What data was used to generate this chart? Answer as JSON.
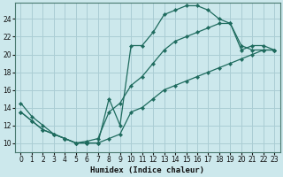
{
  "xlabel": "Humidex (Indice chaleur)",
  "background_color": "#cce8ec",
  "line_color": "#1e6b5e",
  "grid_color": "#aacdd4",
  "xlim": [
    -0.5,
    23.5
  ],
  "ylim": [
    9.0,
    25.8
  ],
  "xticks": [
    0,
    1,
    2,
    3,
    4,
    5,
    6,
    7,
    8,
    9,
    10,
    11,
    12,
    13,
    14,
    15,
    16,
    17,
    18,
    19,
    20,
    21,
    22,
    23
  ],
  "yticks": [
    10,
    12,
    14,
    16,
    18,
    20,
    22,
    24
  ],
  "curve1_x": [
    0,
    1,
    2,
    3,
    4,
    5,
    6,
    7,
    8,
    9,
    10,
    11,
    12,
    13,
    14,
    15,
    16,
    17,
    18,
    19,
    20,
    21,
    22,
    23
  ],
  "curve1_y": [
    14.5,
    13.0,
    12.0,
    11.0,
    10.5,
    10.0,
    10.0,
    10.0,
    15.0,
    12.0,
    21.0,
    21.0,
    22.5,
    24.5,
    25.0,
    25.5,
    25.5,
    25.0,
    24.0,
    23.5,
    21.0,
    20.5,
    20.5,
    20.5
  ],
  "curve2_x": [
    0,
    1,
    2,
    3,
    4,
    5,
    6,
    7,
    8,
    9,
    10,
    11,
    12,
    13,
    14,
    15,
    16,
    17,
    18,
    19,
    20,
    21,
    22,
    23
  ],
  "curve2_y": [
    13.5,
    12.5,
    11.5,
    11.0,
    10.5,
    10.0,
    10.2,
    10.5,
    13.5,
    14.5,
    16.5,
    17.5,
    19.0,
    20.5,
    21.5,
    22.0,
    22.5,
    23.0,
    23.5,
    23.5,
    20.5,
    21.0,
    21.0,
    20.5
  ],
  "curve3_x": [
    0,
    1,
    2,
    3,
    4,
    5,
    6,
    7,
    8,
    9,
    10,
    11,
    12,
    13,
    14,
    15,
    16,
    17,
    18,
    19,
    20,
    21,
    22,
    23
  ],
  "curve3_y": [
    13.5,
    12.5,
    11.5,
    11.0,
    10.5,
    10.0,
    10.0,
    10.0,
    10.5,
    11.0,
    13.5,
    14.0,
    15.0,
    16.0,
    16.5,
    17.0,
    17.5,
    18.0,
    18.5,
    19.0,
    19.5,
    20.0,
    20.5,
    20.5
  ]
}
